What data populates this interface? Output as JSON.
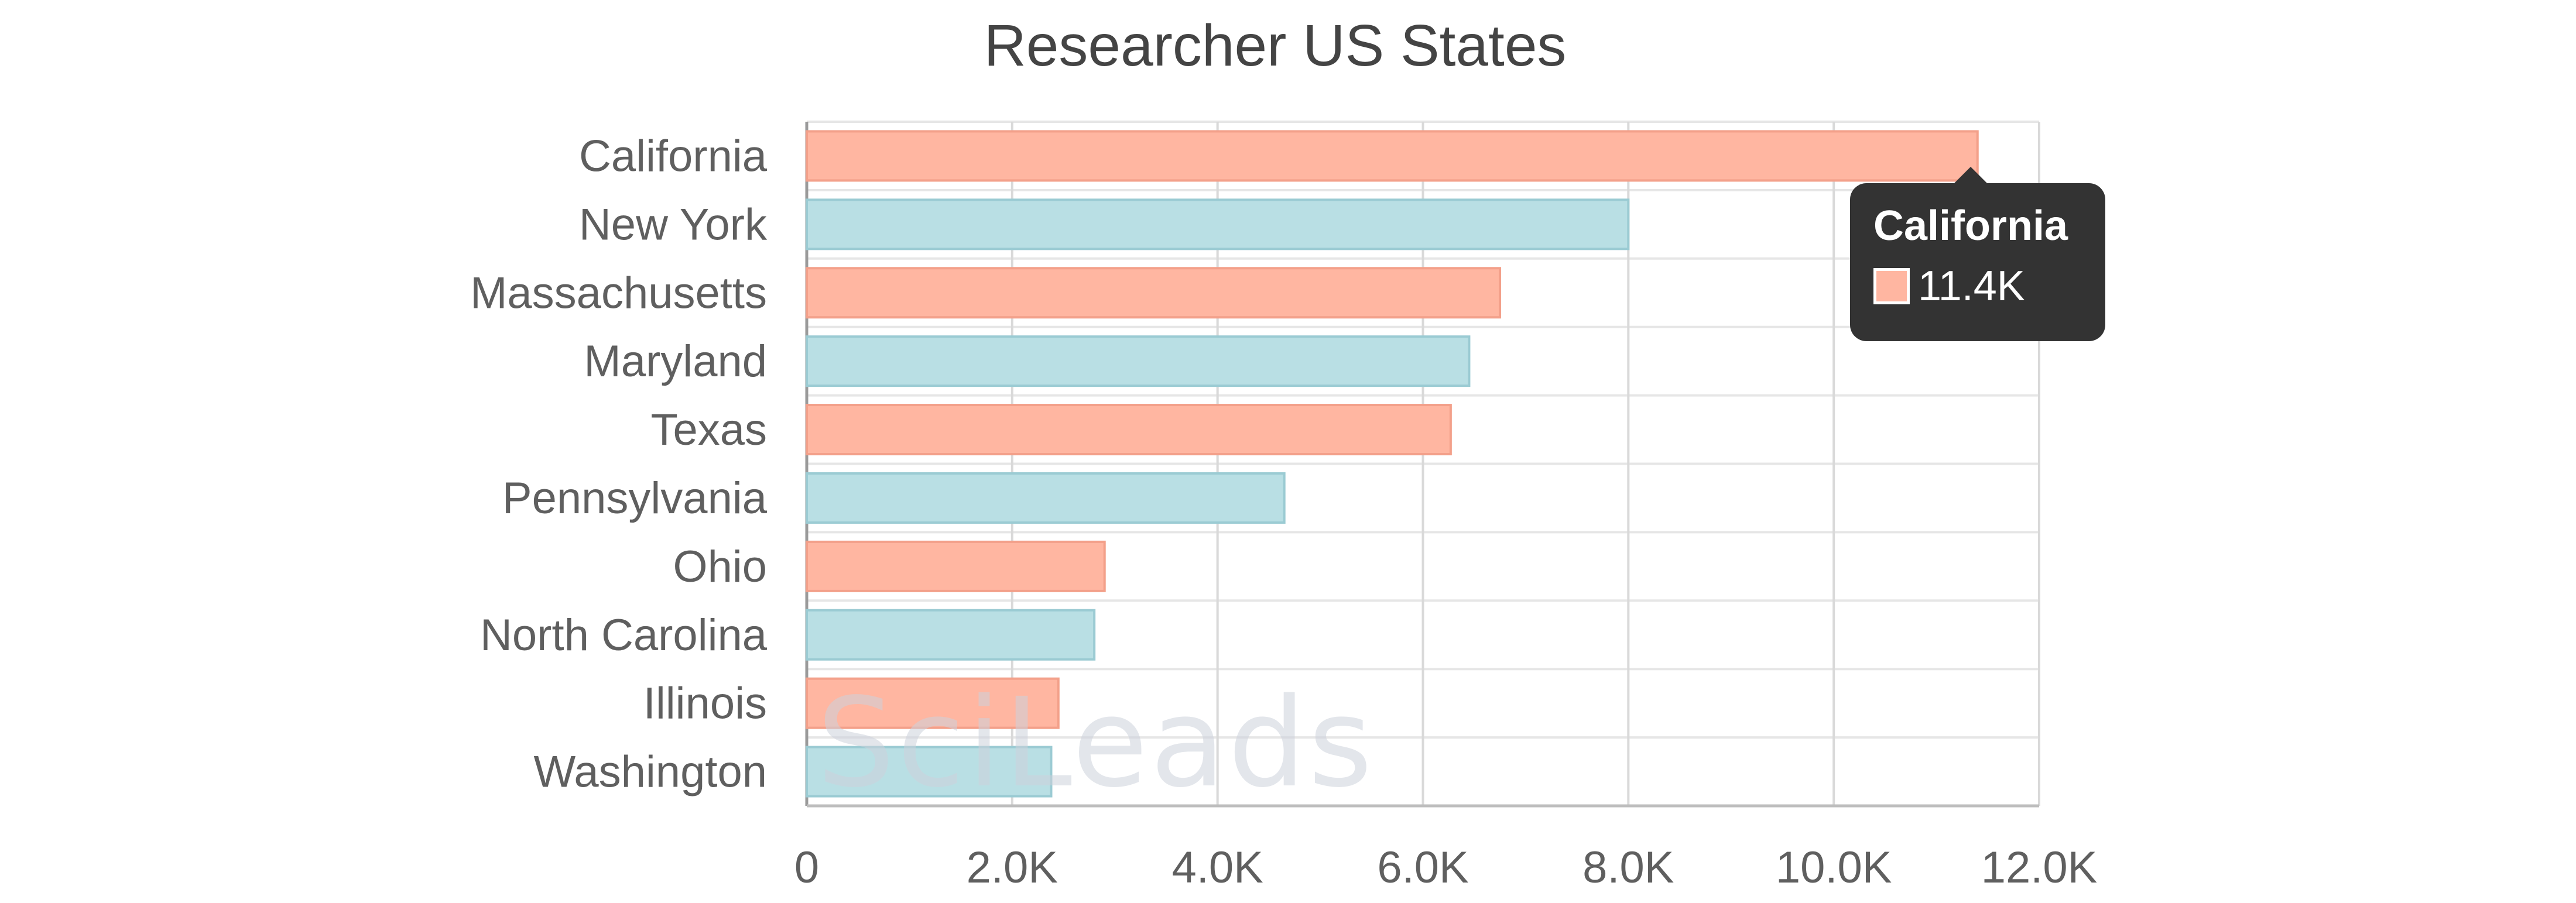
{
  "chart_data": {
    "type": "bar",
    "orientation": "horizontal",
    "title": "Researcher US States",
    "categories": [
      "California",
      "New York",
      "Massachusetts",
      "Maryland",
      "Texas",
      "Pennsylvania",
      "Ohio",
      "North Carolina",
      "Illinois",
      "Washington"
    ],
    "values": [
      11400,
      8000,
      6750,
      6450,
      6270,
      4650,
      2900,
      2800,
      2450,
      2380
    ],
    "xlim": [
      0,
      12000
    ],
    "x_ticks": [
      0,
      2000,
      4000,
      6000,
      8000,
      10000,
      12000
    ],
    "x_tick_labels": [
      "0",
      "2.0K",
      "4.0K",
      "6.0K",
      "8.0K",
      "10.0K",
      "12.0K"
    ],
    "bar_colors": [
      "#ffb6a1",
      "#b9dfe4"
    ],
    "bar_border_colors": [
      "#f3a08a",
      "#9bcbd3"
    ],
    "grid": true,
    "xlabel": "",
    "ylabel": "",
    "tooltip": {
      "category": "California",
      "value_label": "11.4K",
      "swatch_color": "#ffb6a1"
    },
    "watermark": "SciLeads"
  }
}
